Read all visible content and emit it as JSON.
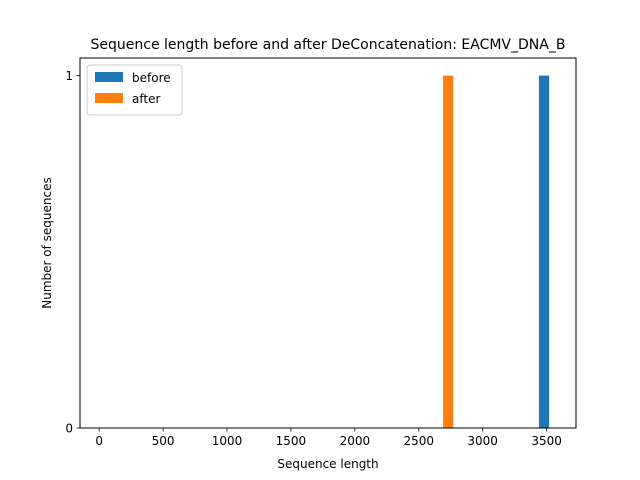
{
  "chart_data": {
    "type": "bar",
    "title": "Sequence length before and after DeConcatenation: EACMV_DNA_B",
    "xlabel": "Sequence length",
    "ylabel": "Number of sequences",
    "xlim": [
      -150,
      3730
    ],
    "ylim": [
      0,
      1.05
    ],
    "x_ticks": [
      0,
      500,
      1000,
      1500,
      2000,
      2500,
      3000,
      3500
    ],
    "y_ticks": [
      0,
      1
    ],
    "legend_position": "top-left",
    "bar_width": 80,
    "series": [
      {
        "name": "before",
        "color": "#1f77b4",
        "bars": [
          {
            "x": 3480,
            "value": 1
          }
        ]
      },
      {
        "name": "after",
        "color": "#ff7f0e",
        "bars": [
          {
            "x": 2730,
            "value": 1
          }
        ]
      }
    ]
  }
}
